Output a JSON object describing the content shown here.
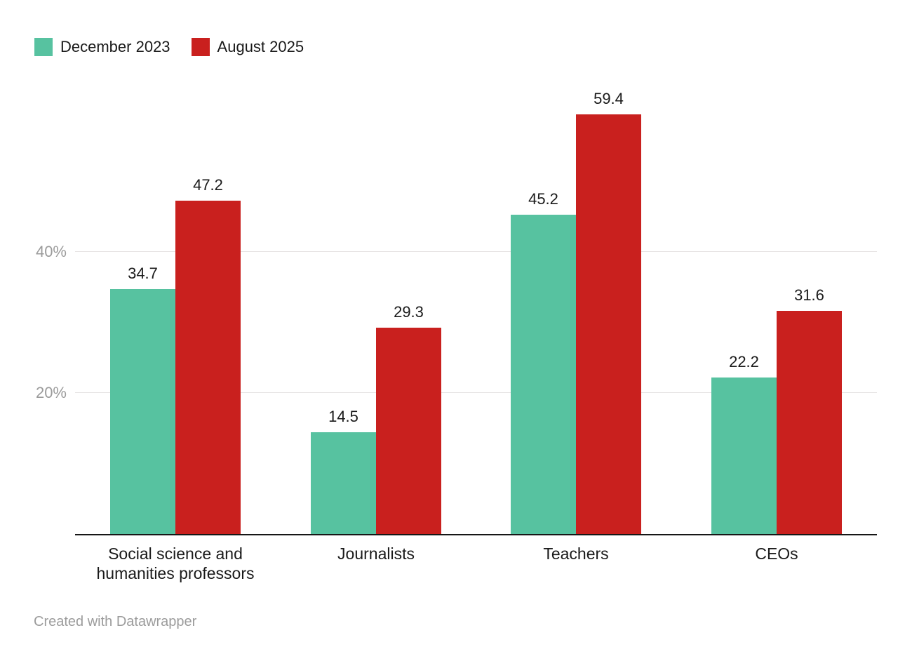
{
  "chart_data": {
    "type": "bar",
    "categories": [
      "Social science and humanities professors",
      "Journalists",
      "Teachers",
      "CEOs"
    ],
    "series": [
      {
        "name": "December 2023",
        "color": "#57c2a0",
        "values": [
          34.7,
          14.5,
          45.2,
          22.2
        ]
      },
      {
        "name": "August 2025",
        "color": "#c9201e",
        "values": [
          47.2,
          29.3,
          59.4,
          31.6
        ]
      }
    ],
    "title": "",
    "xlabel": "",
    "ylabel": "",
    "y_ticks": [
      {
        "value": 20,
        "label": "20%"
      },
      {
        "value": 40,
        "label": "40%"
      }
    ],
    "ylim": [
      0,
      62
    ],
    "grid": true,
    "legend_position": "top-left",
    "value_labels": true
  },
  "footer": {
    "attribution": "Created with Datawrapper"
  },
  "colors": {
    "axis_line": "#161616",
    "gridline": "#e6e3e3",
    "tick_text": "#9b9b9b",
    "label_text": "#1a1a1a",
    "footer_text": "#9c9c9c"
  }
}
